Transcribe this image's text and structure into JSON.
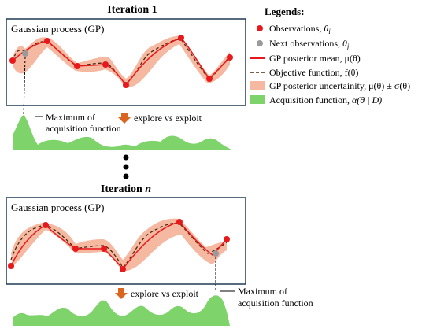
{
  "iteration1": {
    "title": "Iteration 1",
    "panel_label": "Gaussian process (GP)",
    "max_label_line1": "Maximum of",
    "max_label_line2": "acquisition function",
    "explore_label": "explore vs exploit"
  },
  "iterationN": {
    "title_prefix": "Iteration ",
    "title_var": "n",
    "panel_label": "Gaussian process (GP)",
    "max_label_line1": "Maximum of",
    "max_label_line2": "acquisition function",
    "explore_label": "explore vs exploit"
  },
  "legend": {
    "title": "Legends:",
    "items": [
      {
        "label": "Observations, ",
        "math": "θ",
        "sub": "i"
      },
      {
        "label": "Next observations, ",
        "math": "θ",
        "sub": "j"
      },
      {
        "label": "GP posterior mean, ",
        "math": "μ(θ)",
        "sub": ""
      },
      {
        "label": "Objective function, ",
        "math": "f(θ)",
        "sub": ""
      },
      {
        "label": "GP posterior uncertainity, ",
        "math": "μ(θ) ± σ(θ)",
        "sub": ""
      },
      {
        "label": "Acquisition function, ",
        "math": "α(θ | D)",
        "sub": ""
      }
    ]
  },
  "colors": {
    "observation": "#e8191c",
    "next_observation": "#9a9a9a",
    "mean": "#e8191c",
    "objective": "#4a2a10",
    "uncertainty": "#f5b9a1",
    "acquisition": "#7ed36b",
    "arrow": "#d9651f",
    "panel_border": "#1f3a52"
  }
}
